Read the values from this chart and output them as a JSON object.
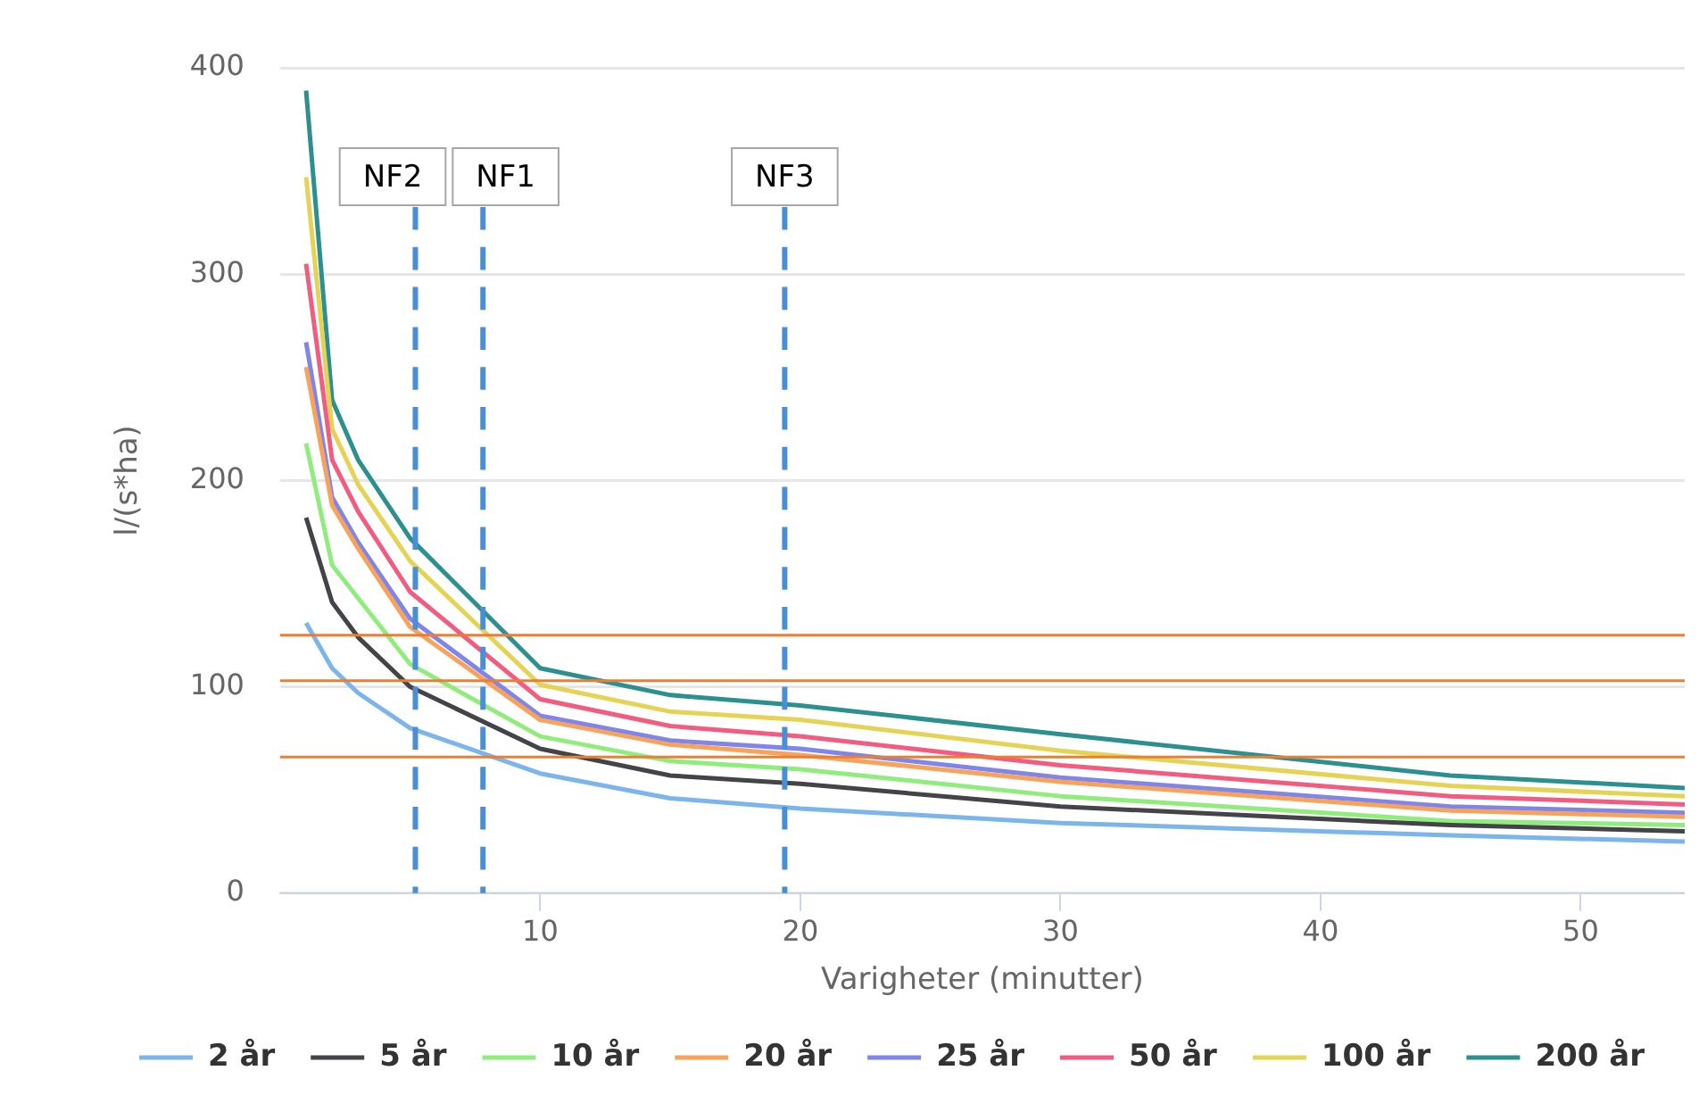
{
  "chart_data": {
    "type": "line",
    "xlabel": "Varigheter (minutter)",
    "ylabel": "l/(s*ha)",
    "xlim": [
      0,
      54
    ],
    "xticks": [
      10,
      20,
      30,
      40,
      50
    ],
    "ylim": [
      0,
      400
    ],
    "yticks": [
      0,
      100,
      200,
      300,
      400
    ],
    "grid": "y",
    "legend": "bottom",
    "marker": "none",
    "line_style": "solid",
    "x": [
      1,
      2,
      3,
      5,
      10,
      15,
      20,
      30,
      45,
      54
    ],
    "series": [
      {
        "name": "2 år",
        "color": "#7cb5ec",
        "values": [
          131,
          109,
          97,
          80,
          58,
          46,
          41,
          34,
          28,
          25
        ]
      },
      {
        "name": "5 år",
        "color": "#434348",
        "values": [
          182,
          141,
          124,
          100,
          70,
          57,
          53,
          42,
          33,
          30
        ]
      },
      {
        "name": "10 år",
        "color": "#90ed7d",
        "values": [
          218,
          159,
          143,
          111,
          76,
          64,
          60,
          47,
          35,
          33
        ]
      },
      {
        "name": "20 år",
        "color": "#f7a35c",
        "values": [
          255,
          188,
          167,
          129,
          84,
          72,
          67,
          54,
          40,
          37
        ]
      },
      {
        "name": "25 år",
        "color": "#8085e9",
        "values": [
          267,
          192,
          170,
          133,
          86,
          74,
          70,
          56,
          42,
          39
        ]
      },
      {
        "name": "50 år",
        "color": "#f15c80",
        "values": [
          305,
          210,
          185,
          146,
          94,
          81,
          76,
          62,
          47,
          43
        ]
      },
      {
        "name": "100 år",
        "color": "#e4d354",
        "values": [
          347,
          225,
          198,
          161,
          101,
          88,
          84,
          69,
          52,
          47
        ]
      },
      {
        "name": "200 år",
        "color": "#2b908f",
        "values": [
          389,
          239,
          210,
          172,
          109,
          96,
          91,
          77,
          57,
          51
        ]
      }
    ],
    "ref_lines": [
      {
        "axis": "x",
        "value": 5.2,
        "label": "NF2",
        "color": "#4a8fd4",
        "line_style": "dashed"
      },
      {
        "axis": "x",
        "value": 7.8,
        "label": "NF1",
        "color": "#4a8fd4",
        "line_style": "dashed"
      },
      {
        "axis": "x",
        "value": 19.4,
        "label": "NF3",
        "color": "#4a8fd4",
        "line_style": "dashed"
      },
      {
        "axis": "y",
        "value": 125,
        "color": "#ed7d31",
        "line_style": "solid"
      },
      {
        "axis": "y",
        "value": 103,
        "color": "#ed7d31",
        "line_style": "solid"
      },
      {
        "axis": "y",
        "value": 66,
        "color": "#ed7d31",
        "line_style": "solid"
      }
    ]
  }
}
